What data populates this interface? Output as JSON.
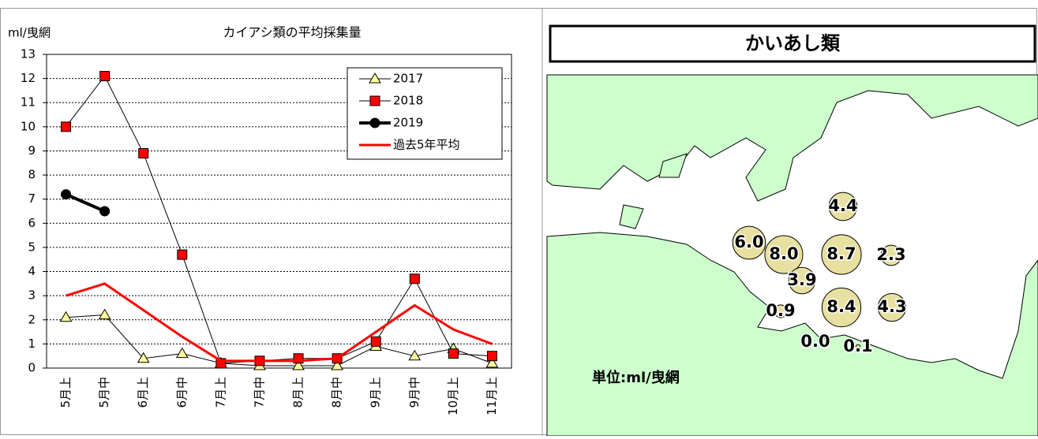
{
  "chart_data": [
    {
      "type": "line",
      "title": "カイアシ類の平均採集量",
      "y_label": "ml/曳網",
      "categories": [
        "5月上",
        "5月中",
        "6月上",
        "6月中",
        "7月上",
        "7月中",
        "8月上",
        "8月中",
        "9月上",
        "9月中",
        "10月上",
        "11月上"
      ],
      "series": [
        {
          "name": "2017",
          "color": "#ffff99",
          "marker": "triangle",
          "values": [
            2.1,
            2.2,
            0.4,
            0.6,
            0.2,
            0.1,
            0.1,
            0.1,
            0.9,
            0.5,
            0.8,
            0.2
          ]
        },
        {
          "name": "2018",
          "color": "#ff0000",
          "marker": "square",
          "values": [
            10.0,
            12.1,
            8.9,
            4.7,
            0.2,
            0.3,
            0.4,
            0.4,
            1.1,
            3.7,
            0.6,
            0.5
          ]
        },
        {
          "name": "2019",
          "color": "#000000",
          "marker": "circle",
          "values": [
            7.2,
            6.5,
            null,
            null,
            null,
            null,
            null,
            null,
            null,
            null,
            null,
            null
          ]
        },
        {
          "name": "過去5年平均",
          "color": "#ff0000",
          "marker": "none",
          "values": [
            3.0,
            3.5,
            2.4,
            1.3,
            0.3,
            0.3,
            0.3,
            0.4,
            1.5,
            2.6,
            1.6,
            1.0
          ]
        }
      ],
      "ylim": [
        0,
        13
      ],
      "yticks": [
        0,
        1,
        2,
        3,
        4,
        5,
        6,
        7,
        8,
        9,
        10,
        11,
        12,
        13
      ],
      "grid": true,
      "legend": "top-right"
    },
    {
      "type": "bubble_map",
      "title": "かいあし類",
      "unit_label": "単位:ml/曳網",
      "color": "#e8e0a0",
      "values": [
        4.4,
        6.0,
        8.0,
        8.7,
        2.3,
        3.9,
        0.9,
        8.4,
        4.3,
        0.0,
        0.1
      ],
      "value_labels": [
        "4.4",
        "6.0",
        "8.0",
        "8.7",
        "2.3",
        "3.9",
        "0.9",
        "8.4",
        "4.3",
        "0.0",
        "0.1"
      ]
    }
  ]
}
